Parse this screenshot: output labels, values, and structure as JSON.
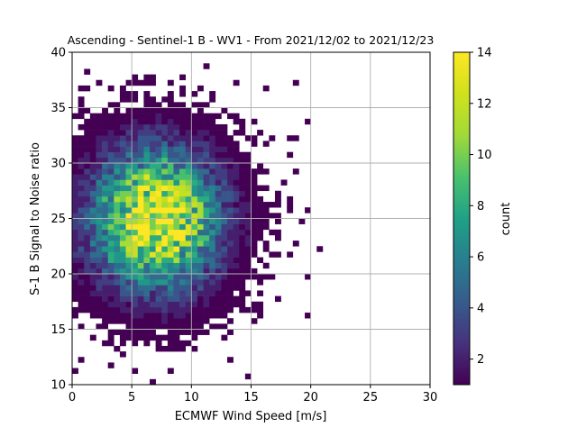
{
  "chart_data": {
    "type": "heatmap",
    "title": "Ascending - Sentinel-1 B - WV1 - From 2021/12/02 to 2021/12/23",
    "xlabel": "ECMWF Wind Speed [m/s]",
    "ylabel": "S-1 B Signal to Noise ratio",
    "xlim": [
      0,
      30
    ],
    "ylim": [
      10,
      40
    ],
    "xticks": [
      0,
      5,
      10,
      15,
      20,
      25,
      30
    ],
    "yticks": [
      10,
      15,
      20,
      25,
      30,
      35,
      40
    ],
    "grid": true,
    "colormap": "viridis",
    "colorbar": {
      "label": "count",
      "min": 1,
      "max": 14,
      "ticks": [
        2,
        4,
        6,
        8,
        10,
        12,
        14
      ]
    },
    "density": {
      "description_of_cluster": "2D histogram, dense core near wind speed ~7 m/s and SNR ~25, sparse outliers to ~22 m/s",
      "peak_count": 14,
      "core_x": 7,
      "core_y": 25,
      "bin_width_x": 0.5,
      "bin_width_y": 0.5
    }
  },
  "colors": {
    "grid": "#b0b0b0",
    "viridis_low": "#440154",
    "viridis_high": "#fde725"
  }
}
